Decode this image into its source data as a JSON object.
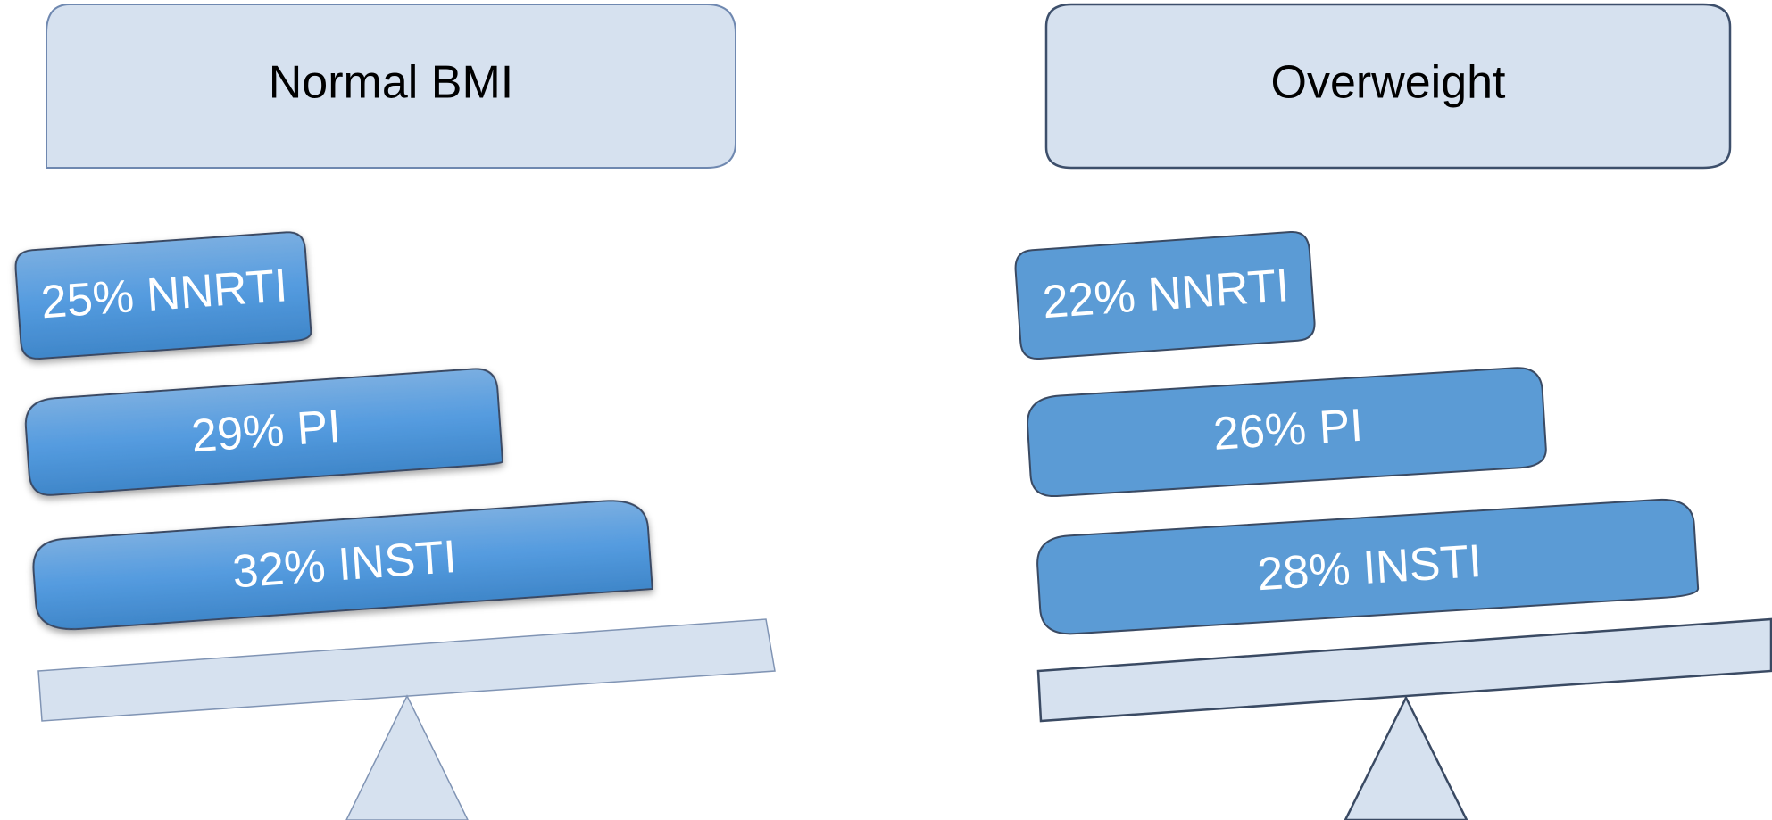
{
  "panels": [
    {
      "title": "Normal BMI",
      "blocks": [
        {
          "percent": 25,
          "class": "NNRTI",
          "label": "25% NNRTI"
        },
        {
          "percent": 29,
          "class": "PI",
          "label": "29% PI"
        },
        {
          "percent": 32,
          "class": "INSTI",
          "label": "32% INSTI"
        }
      ]
    },
    {
      "title": "Overweight",
      "blocks": [
        {
          "percent": 22,
          "class": "NNRTI",
          "label": "22% NNRTI"
        },
        {
          "percent": 26,
          "class": "PI",
          "label": "26% PI"
        },
        {
          "percent": 28,
          "class": "INSTI",
          "label": "28% INSTI"
        }
      ]
    }
  ],
  "colors": {
    "title_box_fill": "#d6e1ef",
    "title_box_stroke_left": "#6f88b0",
    "title_box_stroke_right": "#3d4f6b",
    "block_fill_gradient_top": "#7aaee1",
    "block_fill_gradient_mid": "#549bdf",
    "block_fill_gradient_bottom": "#3f86c9",
    "block_fill_flat": "#5b9bd5",
    "block_stroke": "#3a4a63",
    "beam_fill": "#d6e1ef",
    "beam_stroke_left": "#8094b4",
    "beam_stroke_right": "#3a4a63",
    "fulcrum_fill": "#d6e1ef"
  }
}
